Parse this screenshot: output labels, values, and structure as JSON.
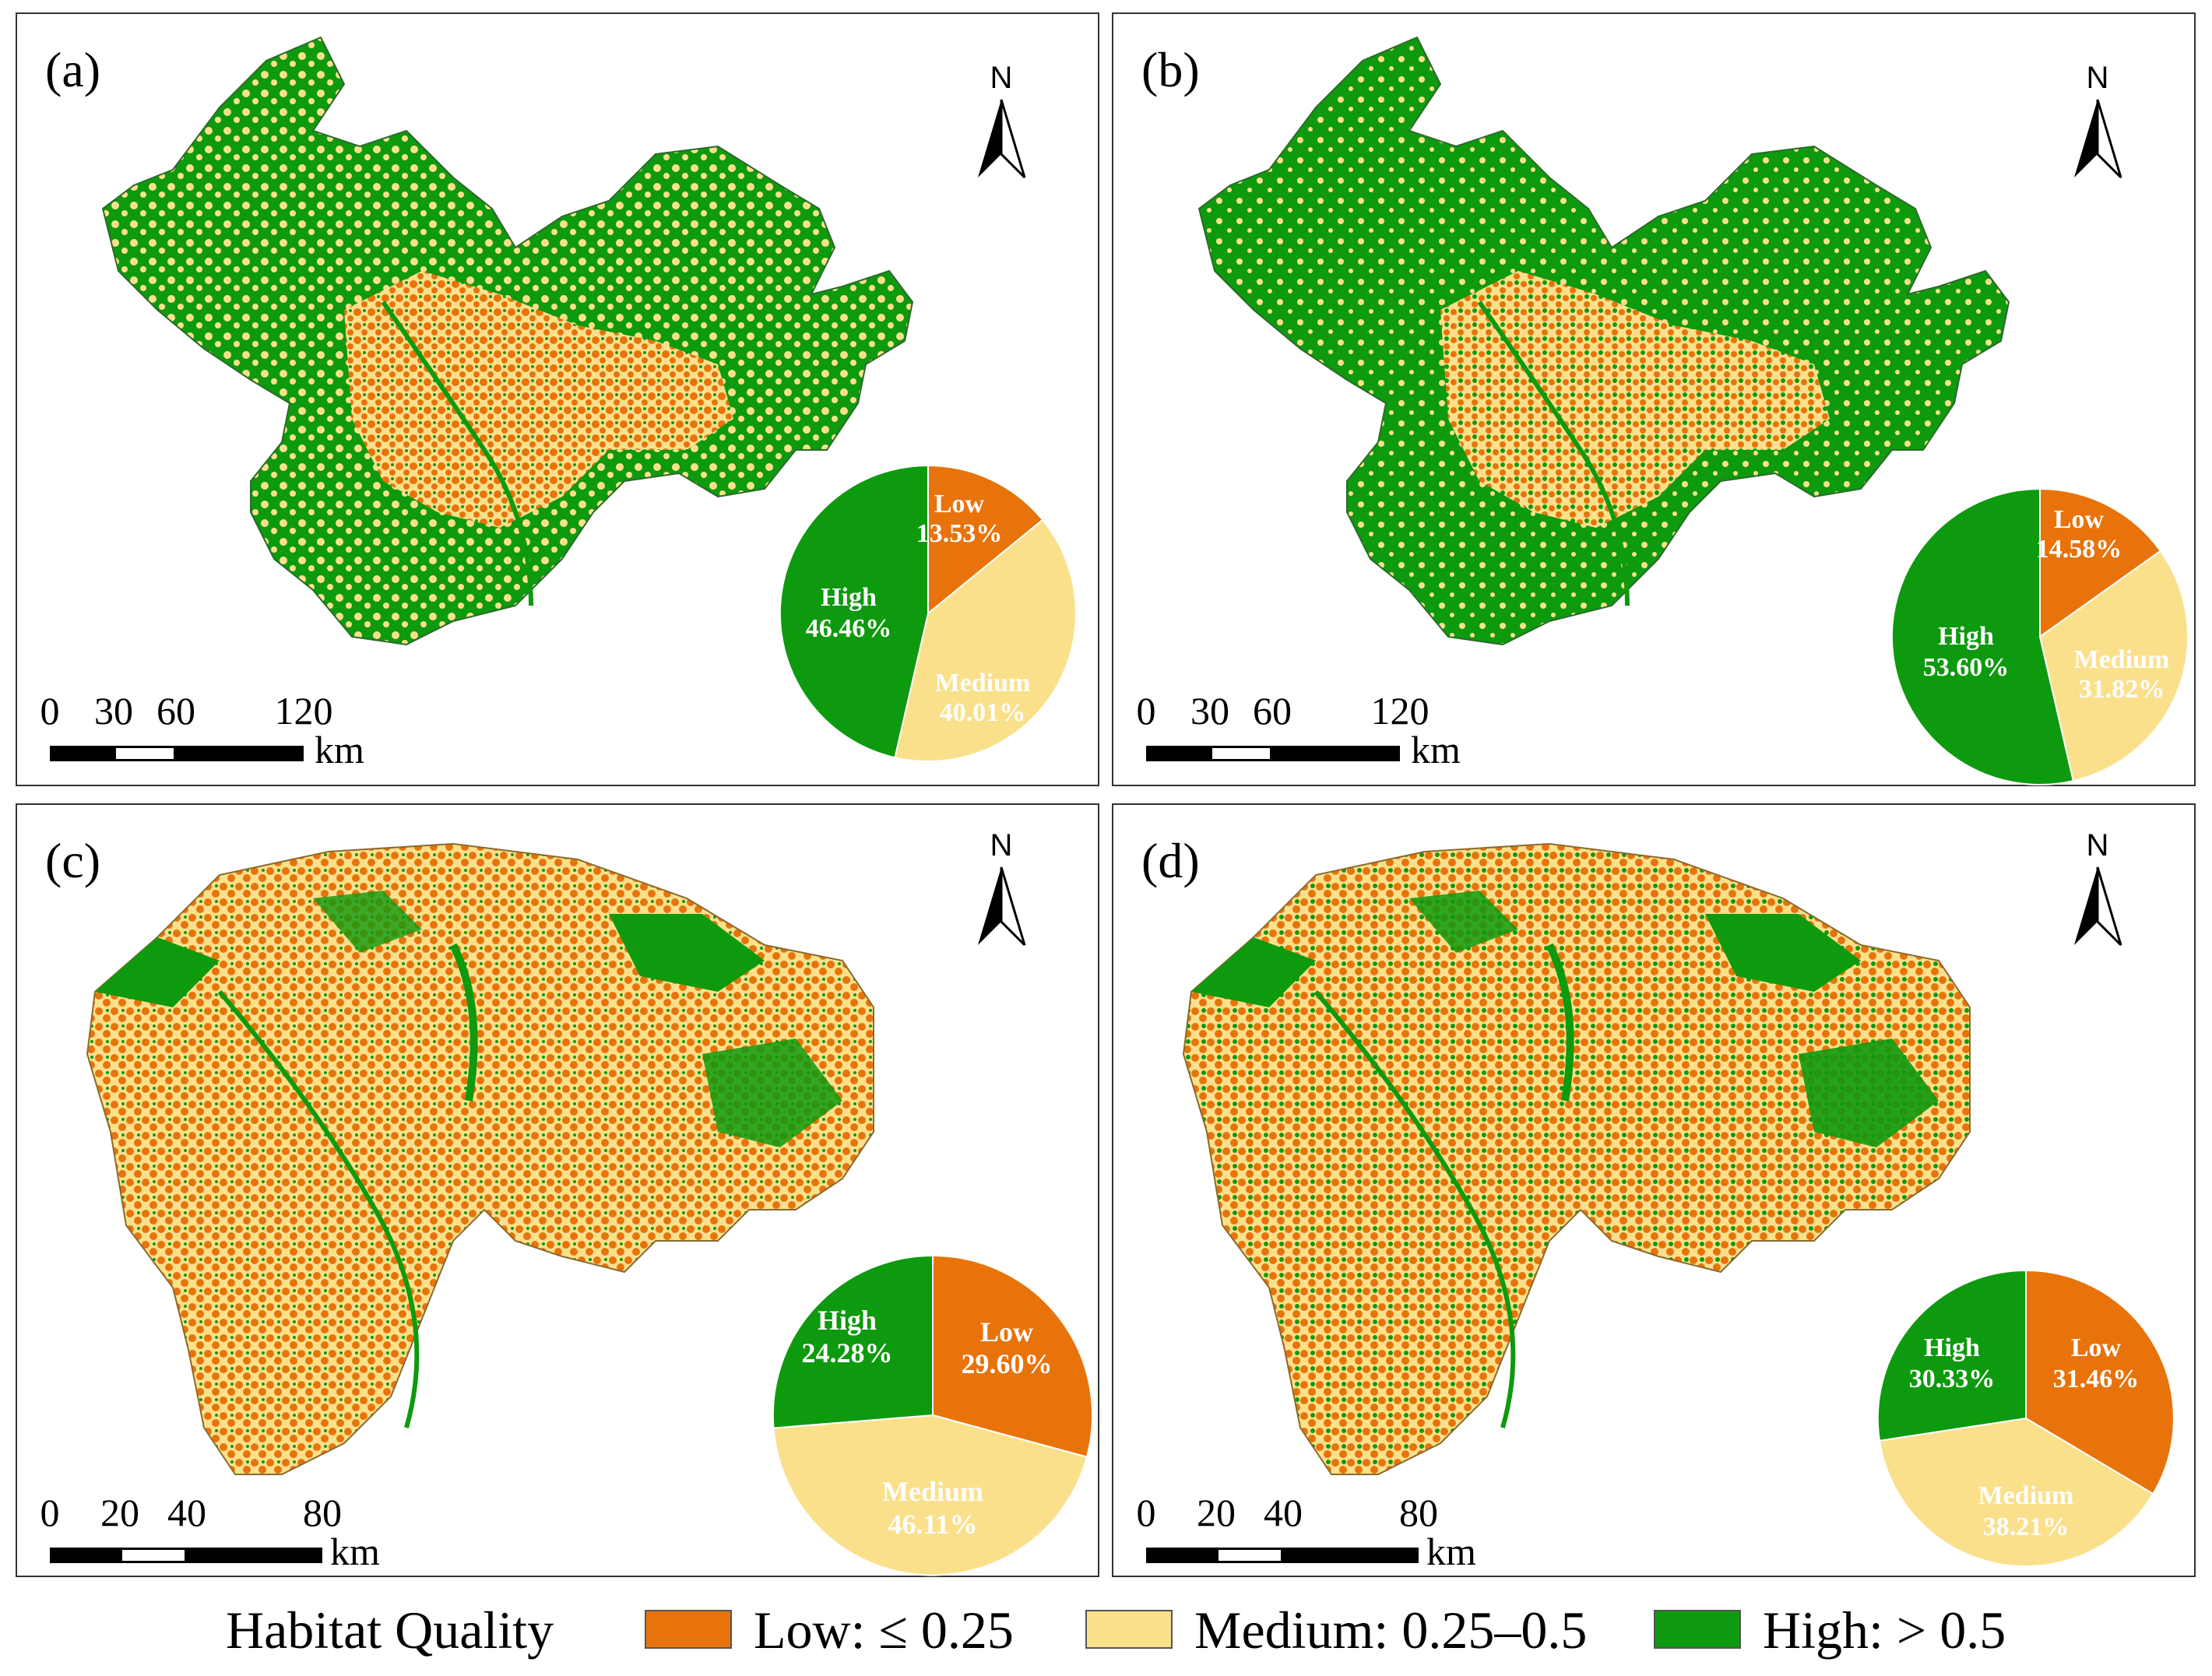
{
  "colors": {
    "low": "#E8730A",
    "medium": "#FBE08C",
    "high": "#0E9A0E",
    "water": "#6FAFD0"
  },
  "panels": [
    {
      "label": "(a)",
      "north": "N",
      "scale": {
        "ticks": [
          "0",
          "30",
          "60",
          "120"
        ],
        "unit": "km"
      },
      "pie": {
        "low": {
          "name": "Low",
          "value": "13.53%"
        },
        "medium": {
          "name": "Medium",
          "value": "40.01%"
        },
        "high": {
          "name": "High",
          "value": "46.46%"
        }
      }
    },
    {
      "label": "(b)",
      "north": "N",
      "scale": {
        "ticks": [
          "0",
          "30",
          "60",
          "120"
        ],
        "unit": "km"
      },
      "pie": {
        "low": {
          "name": "Low",
          "value": "14.58%"
        },
        "medium": {
          "name": "Medium",
          "value": "31.82%"
        },
        "high": {
          "name": "High",
          "value": "53.60%"
        }
      }
    },
    {
      "label": "(c)",
      "north": "N",
      "scale": {
        "ticks": [
          "0",
          "20",
          "40",
          "80"
        ],
        "unit": "km"
      },
      "pie": {
        "low": {
          "name": "Low",
          "value": "29.60%"
        },
        "medium": {
          "name": "Medium",
          "value": "46.11%"
        },
        "high": {
          "name": "High",
          "value": "24.28%"
        }
      }
    },
    {
      "label": "(d)",
      "north": "N",
      "scale": {
        "ticks": [
          "0",
          "20",
          "40",
          "80"
        ],
        "unit": "km"
      },
      "pie": {
        "low": {
          "name": "Low",
          "value": "31.46%"
        },
        "medium": {
          "name": "Medium",
          "value": "38.21%"
        },
        "high": {
          "name": "High",
          "value": "30.33%"
        }
      }
    }
  ],
  "legend": {
    "title": "Habitat Quality",
    "items": [
      {
        "label": "Low: ≤ 0.25"
      },
      {
        "label": "Medium: 0.25–0.5"
      },
      {
        "label": "High: > 0.5"
      }
    ]
  }
}
